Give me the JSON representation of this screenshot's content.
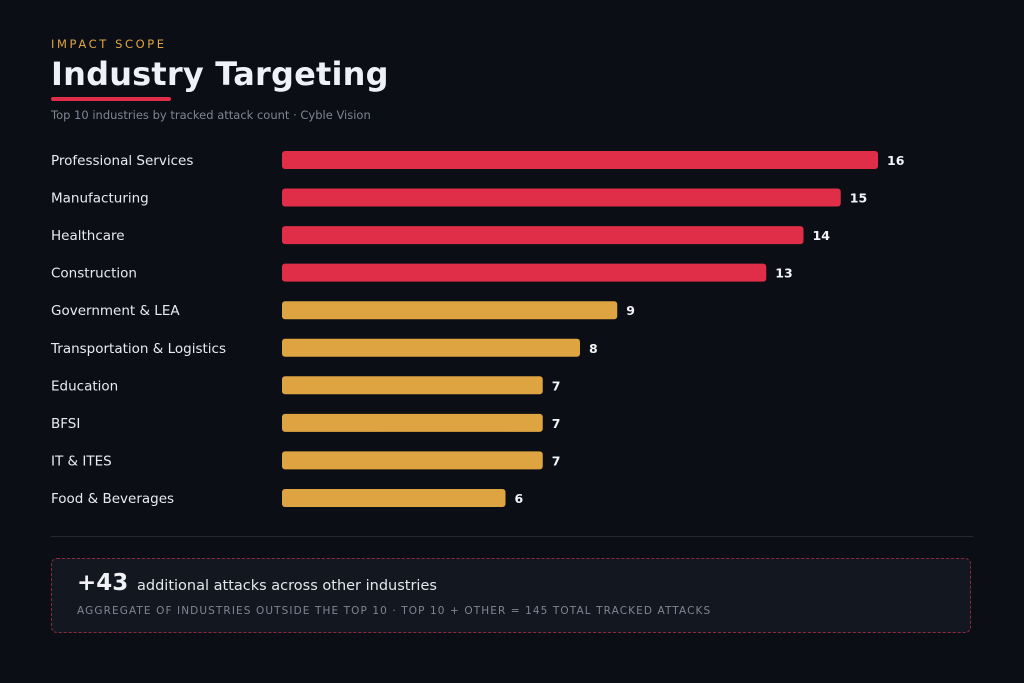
{
  "header": {
    "eyebrow": "IMPACT SCOPE",
    "title": "Industry Targeting",
    "subtitle": "Top 10 industries by tracked attack count · Cyble Vision",
    "accent_color": "#e02d48",
    "eyebrow_color": "#dea442"
  },
  "chart_data": {
    "type": "bar",
    "orientation": "horizontal",
    "title": "Industry Targeting",
    "subtitle": "Top 10 industries by tracked attack count · Cyble Vision",
    "categories": [
      "Professional Services",
      "Manufacturing",
      "Healthcare",
      "Construction",
      "Government & LEA",
      "Transportation & Logistics",
      "Education",
      "BFSI",
      "IT & ITES",
      "Food & Beverages"
    ],
    "values": [
      16,
      15,
      14,
      13,
      9,
      8,
      7,
      7,
      7,
      6
    ],
    "bar_colors": [
      "#e02d48",
      "#e02d48",
      "#e02d48",
      "#e02d48",
      "#dea442",
      "#dea442",
      "#dea442",
      "#dea442",
      "#dea442",
      "#dea442"
    ],
    "xlabel": "",
    "ylabel": "",
    "xlim": [
      0,
      16
    ],
    "grid": false,
    "legend": "none"
  },
  "other": {
    "count": "+43",
    "text": "additional attacks across other industries",
    "note": "AGGREGATE OF INDUSTRIES OUTSIDE THE TOP 10 · TOP 10 + OTHER = 145 TOTAL TRACKED ATTACKS"
  }
}
